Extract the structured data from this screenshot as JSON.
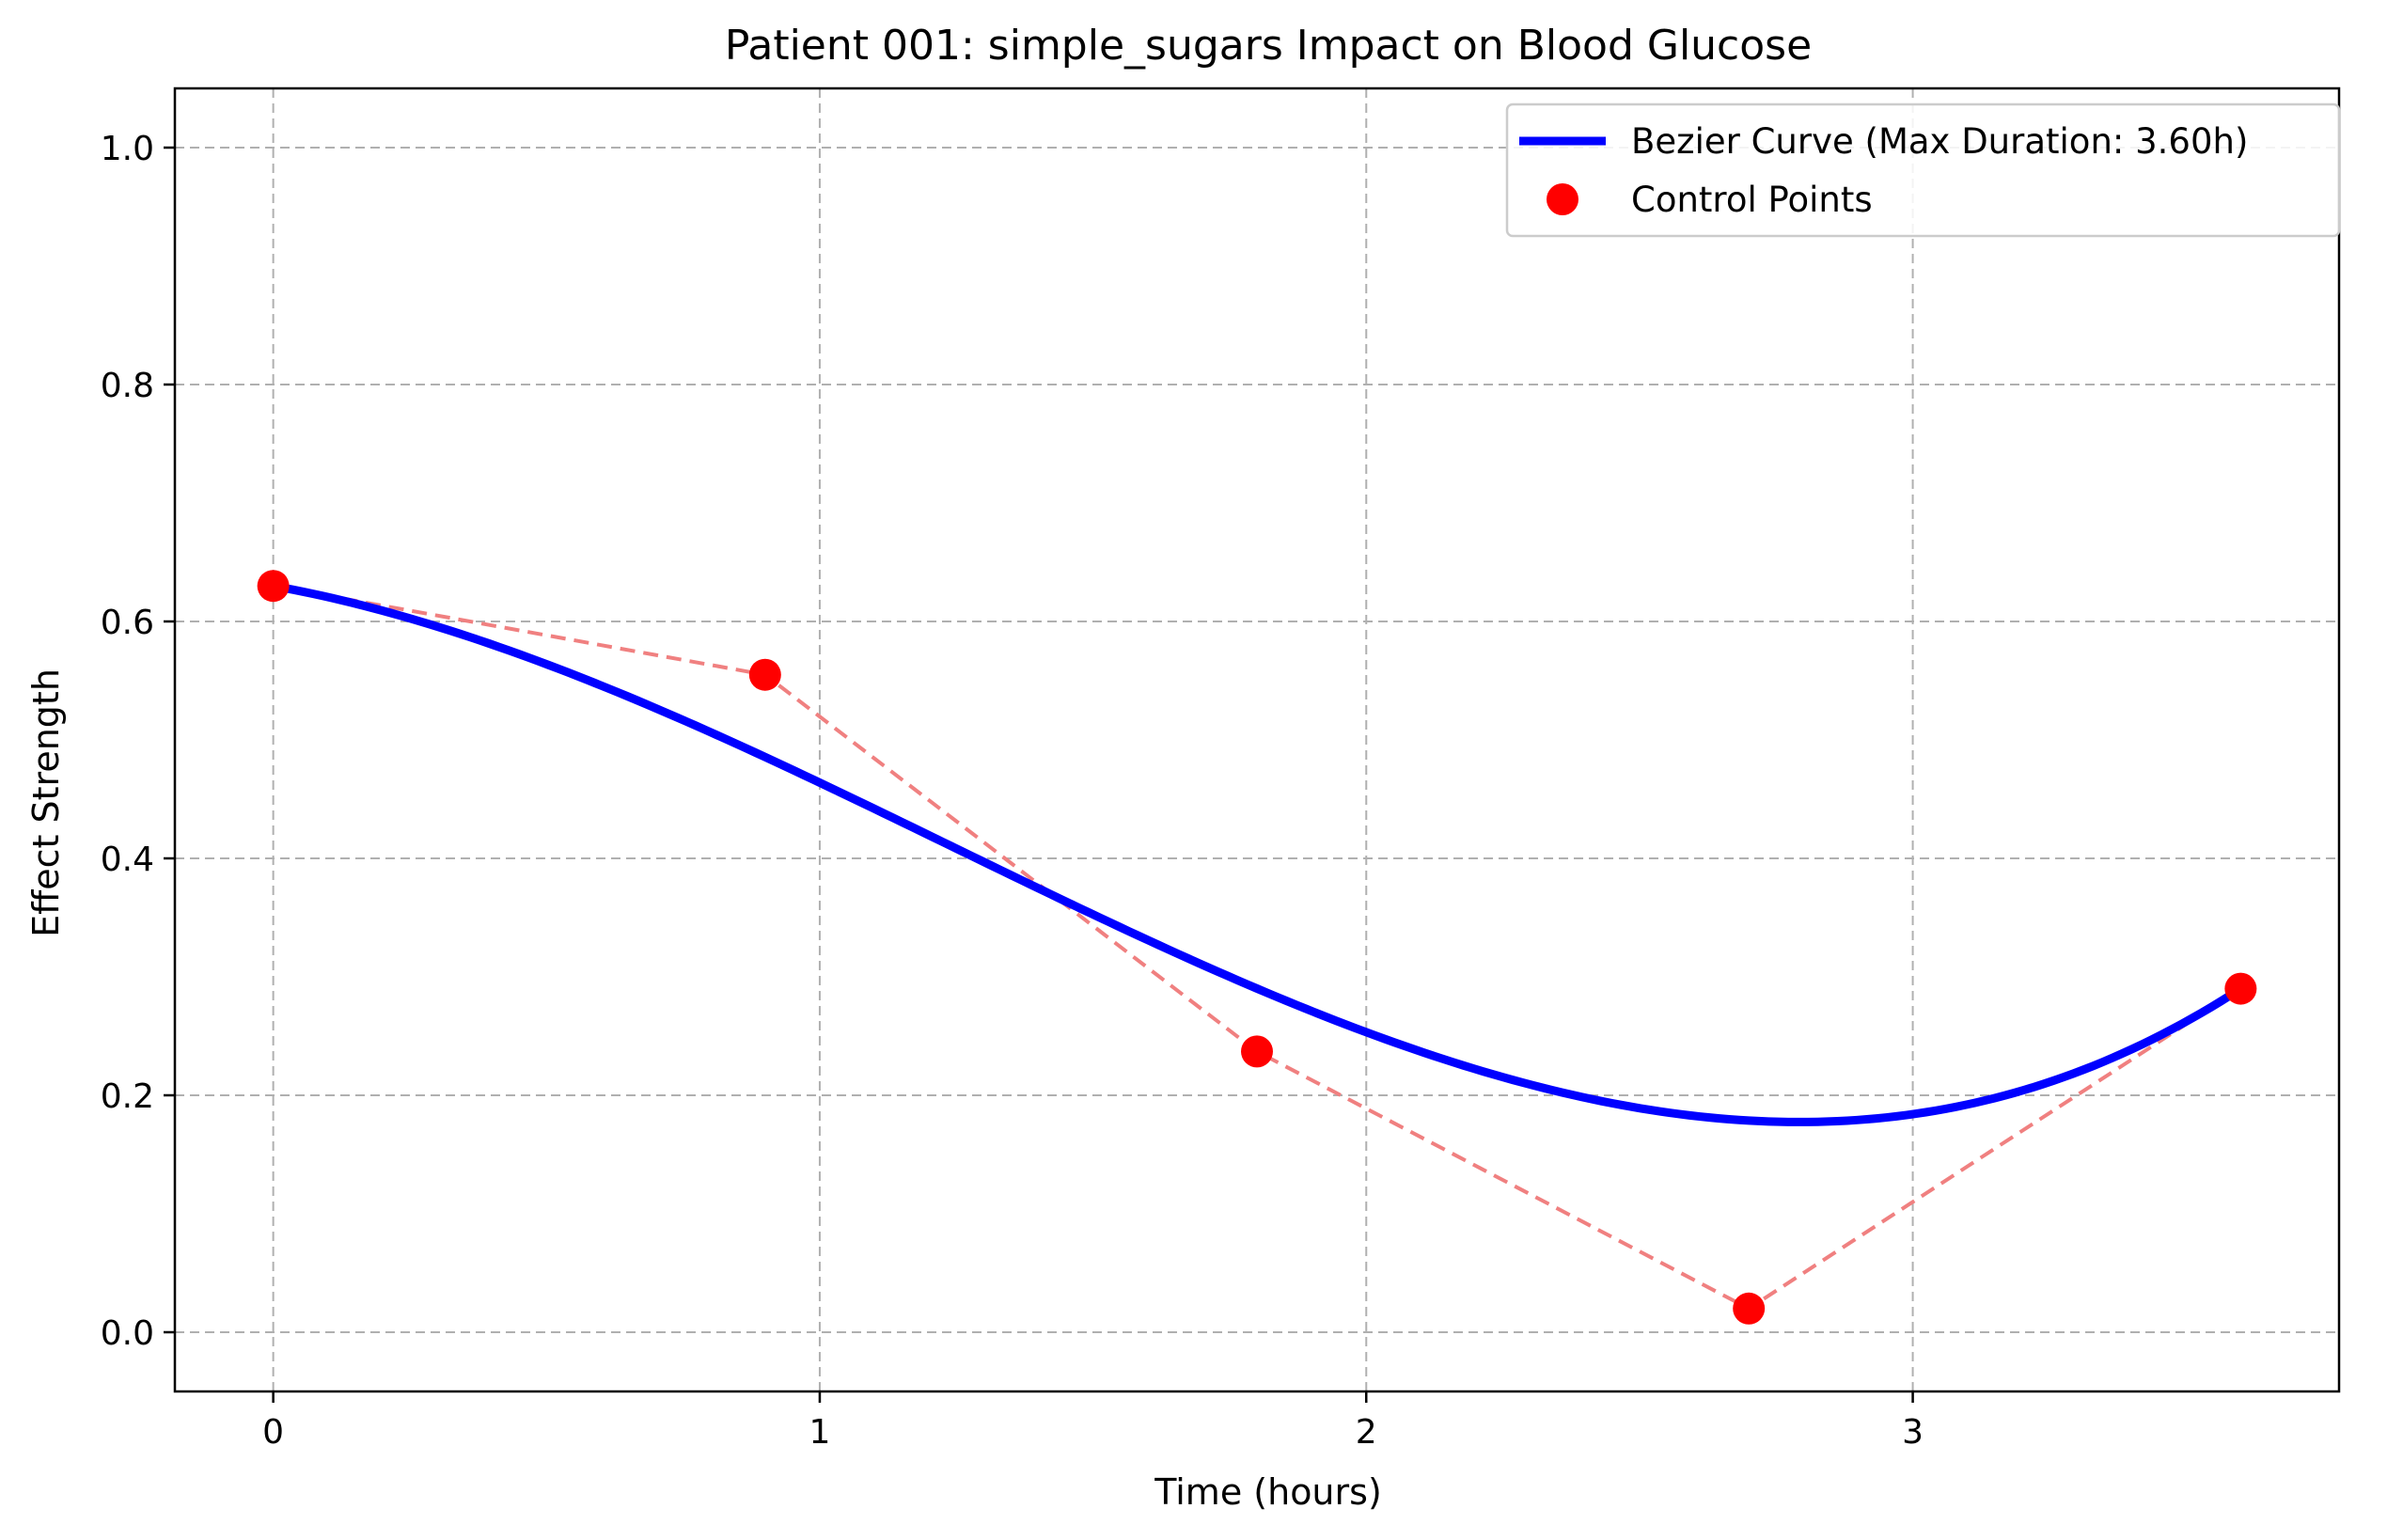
{
  "chart_data": {
    "type": "line",
    "title": "Patient 001: simple_sugars Impact on Blood Glucose",
    "xlabel": "Time (hours)",
    "ylabel": "Effect Strength",
    "xlim": [
      -0.18,
      3.78
    ],
    "ylim": [
      -0.05,
      1.05
    ],
    "xticks": [
      0,
      1,
      2,
      3
    ],
    "yticks": [
      0.0,
      0.2,
      0.4,
      0.6,
      0.8,
      1.0
    ],
    "xtick_labels": [
      "0",
      "1",
      "2",
      "3"
    ],
    "ytick_labels": [
      "0.0",
      "0.2",
      "0.4",
      "0.6",
      "0.8",
      "1.0"
    ],
    "grid": true,
    "legend_position": "top-right",
    "series": [
      {
        "name": "Bezier Curve (Max Duration: 3.60h)",
        "kind": "bezier-curve",
        "color": "#0000ff"
      },
      {
        "name": "Control Points",
        "kind": "control-points",
        "color": "#ff0000",
        "polygon_color": "#f08080",
        "points": [
          {
            "x": 0.0,
            "y": 0.63
          },
          {
            "x": 0.9,
            "y": 0.555
          },
          {
            "x": 1.8,
            "y": 0.237
          },
          {
            "x": 2.7,
            "y": 0.02
          },
          {
            "x": 3.6,
            "y": 0.29
          }
        ]
      }
    ]
  }
}
